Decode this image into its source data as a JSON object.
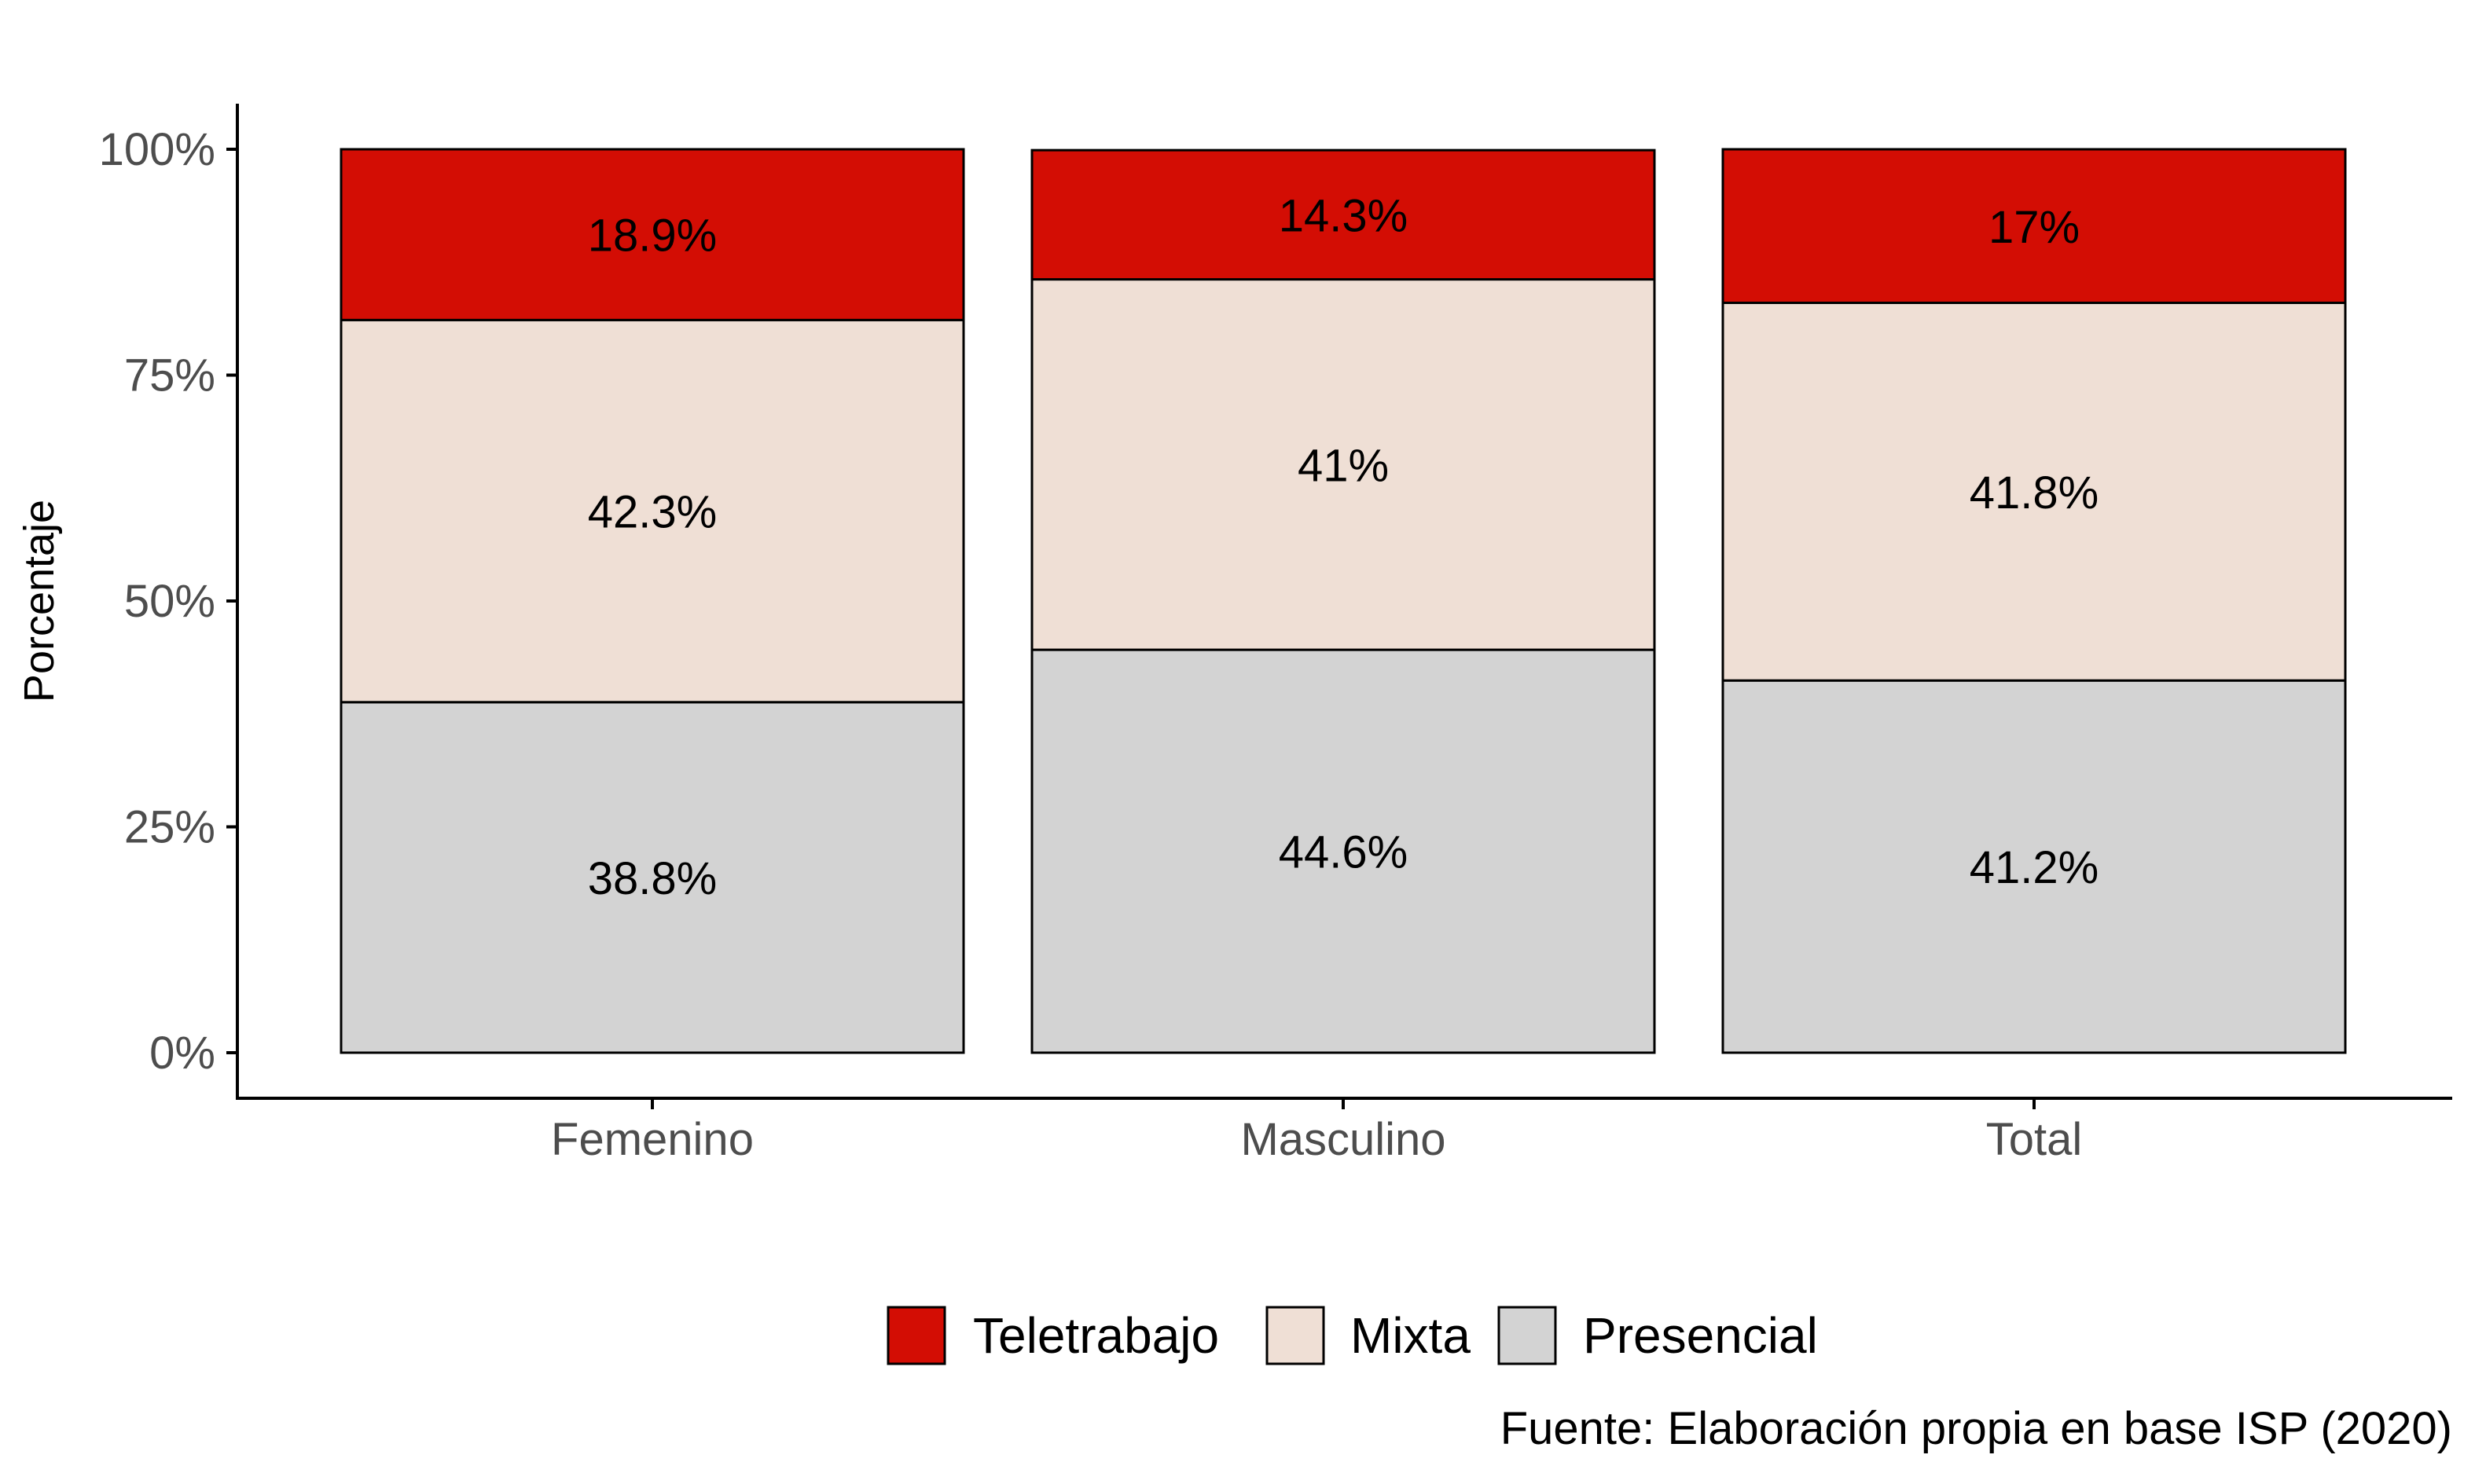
{
  "chart_data": {
    "type": "bar",
    "stacked": true,
    "categories": [
      "Femenino",
      "Masculino",
      "Total"
    ],
    "series": [
      {
        "name": "Presencial",
        "values": [
          38.8,
          44.6,
          41.2
        ],
        "labels": [
          "38.8%",
          "44.6%",
          "41.2%"
        ],
        "color": "#d3d3d3"
      },
      {
        "name": "Mixta",
        "values": [
          42.3,
          41,
          41.8
        ],
        "labels": [
          "42.3%",
          "41%",
          "41.8%"
        ],
        "color": "#efdfd5"
      },
      {
        "name": "Teletrabajo",
        "values": [
          18.9,
          14.3,
          17
        ],
        "labels": [
          "18.9%",
          "14.3%",
          "17%"
        ],
        "color": "#d30d04"
      }
    ],
    "ylabel": "Porcentaje",
    "xlabel": "",
    "ylim": [
      0,
      100
    ],
    "yticks": [
      "0%",
      "25%",
      "50%",
      "75%",
      "100%"
    ],
    "legend": {
      "position": "bottom",
      "order": [
        "Teletrabajo",
        "Mixta",
        "Presencial"
      ]
    },
    "grid": false,
    "caption": "Fuente: Elaboración propia en base ISP (2020)"
  }
}
